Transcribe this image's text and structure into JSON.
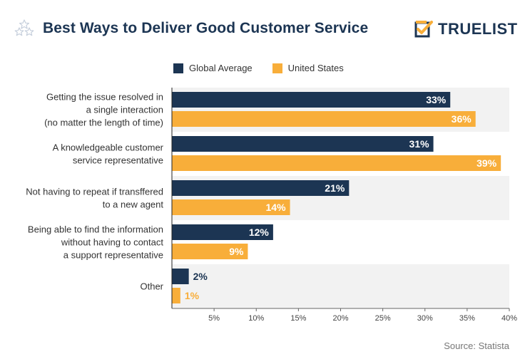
{
  "header": {
    "title": "Best Ways to Deliver Good Customer Service",
    "brand": "TRUELIST"
  },
  "icons": {
    "title_icon": "stars-icon",
    "brand_icon": "checkbox-logo-icon"
  },
  "colors": {
    "global": "#1c3553",
    "us": "#f8ae3a",
    "band": "#f2f2f2",
    "title": "#1c3553",
    "source": "#777777"
  },
  "source": "Source: Statista",
  "chart_data": {
    "type": "bar",
    "orientation": "horizontal",
    "categories": [
      [
        "Getting the issue resolved in",
        "a single interaction",
        "(no matter the length of time)"
      ],
      [
        "A knowledgeable customer",
        "service representative"
      ],
      [
        "Not having to repeat if transffered",
        "to a new agent"
      ],
      [
        "Being able to find the information",
        "without having to contact",
        "a support representative"
      ],
      [
        "Other"
      ]
    ],
    "series": [
      {
        "name": "Global Average",
        "values": [
          33,
          31,
          21,
          12,
          2
        ]
      },
      {
        "name": "United States",
        "values": [
          36,
          39,
          14,
          9,
          1
        ]
      }
    ],
    "xlim": [
      0,
      40
    ],
    "xticks": [
      "5%",
      "10%",
      "15%",
      "20%",
      "25%",
      "30%",
      "35%",
      "40%"
    ],
    "value_labels": [
      [
        "33%",
        "31%",
        "21%",
        "12%",
        "2%"
      ],
      [
        "36%",
        "39%",
        "14%",
        "9%",
        "1%"
      ]
    ],
    "legend_position": "top",
    "grid": false
  }
}
